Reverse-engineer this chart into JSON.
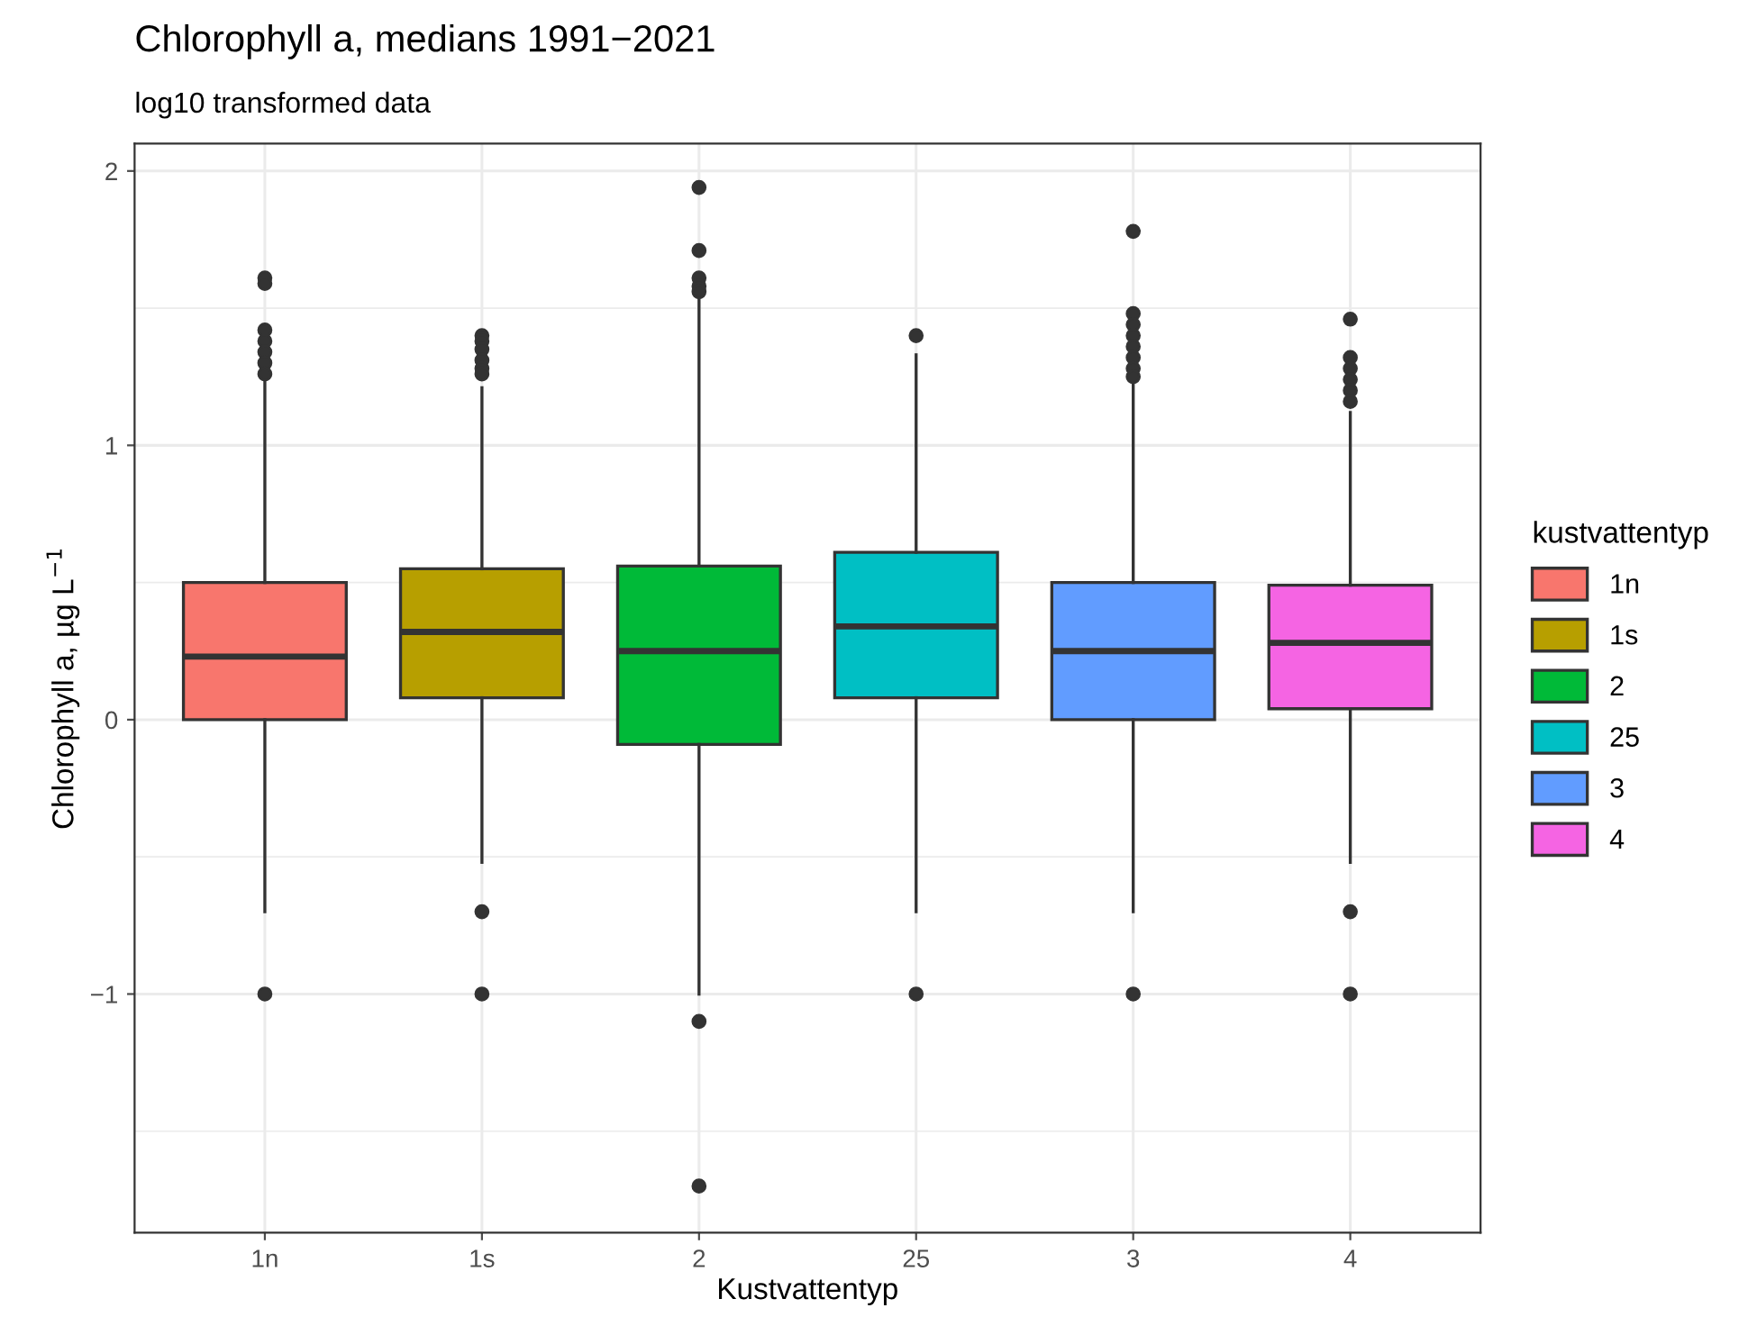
{
  "chart_data": {
    "type": "box",
    "title": "Chlorophyll a, medians 1991−2021",
    "subtitle": "log10 transformed data",
    "xlabel": "Kustvattentyp",
    "ylabel": "Chlorophyll a, µg L$^{−1}$",
    "legend_title": "kustvattentyp",
    "legend": "right",
    "grid": true,
    "categories": [
      "1n",
      "1s",
      "2",
      "25",
      "3",
      "4"
    ],
    "series": [
      {
        "name": "1n",
        "color": "#f8766d",
        "boxes": [
          {
            "low": -0.7,
            "q1": 0.0,
            "median": 0.23,
            "q3": 0.5,
            "high": 1.24,
            "outliers": [
              1.61,
              1.59,
              1.42,
              1.38,
              1.34,
              1.3,
              1.26,
              -1.0
            ]
          },
          null,
          null,
          null,
          null,
          null
        ]
      },
      {
        "name": "1s",
        "color": "#b79f00",
        "boxes": [
          null,
          {
            "low": -0.52,
            "q1": 0.08,
            "median": 0.32,
            "q3": 0.55,
            "high": 1.21,
            "outliers": [
              1.4,
              1.38,
              1.35,
              1.31,
              1.28,
              1.26,
              -0.7,
              -1.0
            ]
          },
          null,
          null,
          null,
          null
        ]
      },
      {
        "name": "2",
        "color": "#00ba38",
        "boxes": [
          null,
          null,
          {
            "low": -1.0,
            "q1": -0.09,
            "median": 0.25,
            "q3": 0.56,
            "high": 1.54,
            "outliers": [
              1.94,
              1.71,
              1.61,
              1.58,
              1.56,
              -1.1,
              -1.7
            ]
          },
          null,
          null,
          null
        ]
      },
      {
        "name": "25",
        "color": "#00bfc4",
        "boxes": [
          null,
          null,
          null,
          {
            "low": -0.7,
            "q1": 0.08,
            "median": 0.34,
            "q3": 0.61,
            "high": 1.33,
            "outliers": [
              1.4,
              -1.0
            ]
          },
          null,
          null
        ]
      },
      {
        "name": "3",
        "color": "#619cff",
        "boxes": [
          null,
          null,
          null,
          null,
          {
            "low": -0.7,
            "q1": 0.0,
            "median": 0.25,
            "q3": 0.5,
            "high": 1.22,
            "outliers": [
              1.78,
              1.48,
              1.44,
              1.4,
              1.36,
              1.32,
              1.28,
              1.25,
              -1.0
            ]
          },
          null
        ]
      },
      {
        "name": "4",
        "color": "#f564e3",
        "boxes": [
          null,
          null,
          null,
          null,
          null,
          {
            "low": -0.52,
            "q1": 0.04,
            "median": 0.28,
            "q3": 0.49,
            "high": 1.12,
            "outliers": [
              1.46,
              1.32,
              1.28,
              1.24,
              1.2,
              1.16,
              -0.7,
              -1.0
            ]
          }
        ]
      }
    ],
    "ylim": [
      -1.87,
      2.1
    ],
    "yticks": [
      {
        "value": -1,
        "label": "−1"
      },
      0,
      1,
      2
    ]
  }
}
